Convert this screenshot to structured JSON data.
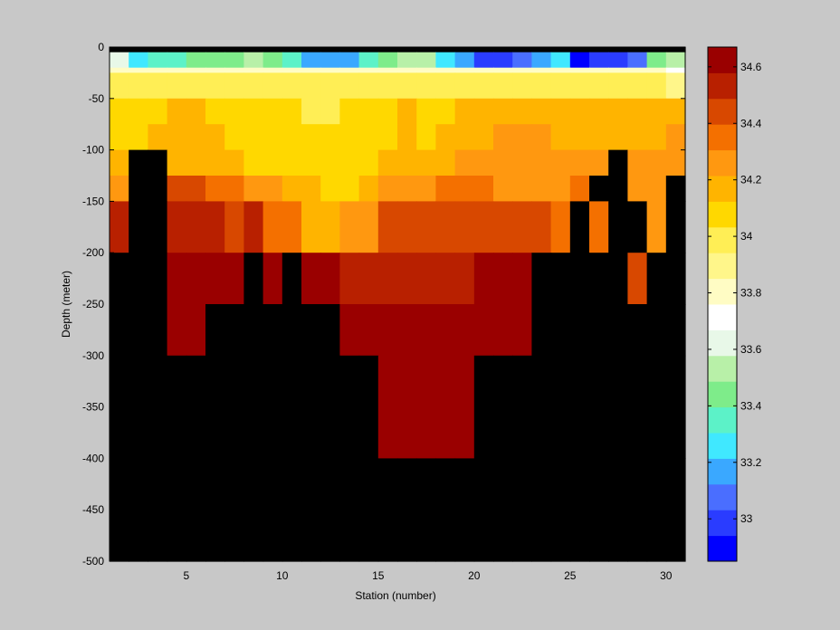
{
  "chart_data": {
    "type": "heatmap",
    "xlabel": "Station (number)",
    "ylabel": "Depth (meter)",
    "xlim": [
      1,
      31
    ],
    "ylim": [
      -500,
      0
    ],
    "x_ticks": [
      5,
      10,
      15,
      20,
      25,
      30
    ],
    "y_ticks": [
      0,
      -50,
      -100,
      -150,
      -200,
      -250,
      -300,
      -350,
      -400,
      -450,
      -500
    ],
    "x_tick_labels": [
      "5",
      "10",
      "15",
      "20",
      "25",
      "30"
    ],
    "y_tick_labels": [
      "0",
      "-50",
      "-100",
      "-150",
      "-200",
      "-250",
      "-300",
      "-350",
      "-400",
      "-450",
      "-500"
    ],
    "depth_bins": [
      [
        0,
        -5
      ],
      [
        -5,
        -20
      ],
      [
        -20,
        -25
      ],
      [
        -25,
        -50
      ],
      [
        -50,
        -75
      ],
      [
        -75,
        -100
      ],
      [
        -100,
        -125
      ],
      [
        -125,
        -150
      ],
      [
        -150,
        -200
      ],
      [
        -200,
        -250
      ],
      [
        -250,
        -300
      ],
      [
        -300,
        -400
      ],
      [
        -400,
        -500
      ]
    ],
    "stations": [
      1,
      2,
      3,
      4,
      5,
      6,
      7,
      8,
      9,
      10,
      11,
      12,
      13,
      14,
      15,
      16,
      17,
      18,
      19,
      20,
      21,
      22,
      23,
      24,
      25,
      26,
      27,
      28,
      29,
      30
    ],
    "grid_rows": [
      [
        null,
        null,
        null,
        null,
        null,
        null,
        null,
        null,
        null,
        null,
        null,
        null,
        null,
        null,
        null,
        null,
        null,
        null,
        null,
        null,
        null,
        null,
        null,
        null,
        null,
        null,
        null,
        null,
        null,
        null
      ],
      [
        33.58,
        33.3,
        33.35,
        33.38,
        33.42,
        33.45,
        33.47,
        33.5,
        33.45,
        33.35,
        33.15,
        33.15,
        33.2,
        33.35,
        33.45,
        33.55,
        33.55,
        33.3,
        33.2,
        33.0,
        32.95,
        33.1,
        33.2,
        33.25,
        32.9,
        32.95,
        32.95,
        33.1,
        33.45,
        33.55
      ],
      [
        33.82,
        33.82,
        33.82,
        33.82,
        33.82,
        33.82,
        33.82,
        33.82,
        33.82,
        33.82,
        33.82,
        33.82,
        33.82,
        33.82,
        33.82,
        33.82,
        33.82,
        33.82,
        33.82,
        33.82,
        33.82,
        33.82,
        33.82,
        33.82,
        33.82,
        33.82,
        33.82,
        33.82,
        33.82,
        33.7
      ],
      [
        34.0,
        33.98,
        33.98,
        33.98,
        33.97,
        33.97,
        33.97,
        33.95,
        33.95,
        33.95,
        33.95,
        33.95,
        33.95,
        33.97,
        33.97,
        33.98,
        33.98,
        33.98,
        34.0,
        34.0,
        34.0,
        34.0,
        34.02,
        34.02,
        34.03,
        34.03,
        33.98,
        33.97,
        33.97,
        33.9
      ],
      [
        34.12,
        34.1,
        34.12,
        34.15,
        34.15,
        34.12,
        34.08,
        34.05,
        34.05,
        34.05,
        34.03,
        34.03,
        34.05,
        34.08,
        34.12,
        34.14,
        34.12,
        34.12,
        34.15,
        34.18,
        34.2,
        34.2,
        34.2,
        34.18,
        34.18,
        34.18,
        34.18,
        34.16,
        34.16,
        34.2
      ],
      [
        34.12,
        34.1,
        34.13,
        34.15,
        34.15,
        34.13,
        34.1,
        34.08,
        34.05,
        34.05,
        34.05,
        34.05,
        34.06,
        34.1,
        34.12,
        34.13,
        34.12,
        34.15,
        34.18,
        34.2,
        34.22,
        34.22,
        34.22,
        34.2,
        34.2,
        34.2,
        34.2,
        34.18,
        34.18,
        34.22
      ],
      [
        34.18,
        null,
        null,
        34.18,
        34.18,
        34.16,
        34.15,
        34.12,
        34.1,
        34.08,
        34.06,
        34.06,
        34.08,
        34.12,
        34.15,
        34.16,
        34.18,
        34.2,
        34.22,
        34.25,
        34.25,
        34.28,
        34.28,
        34.26,
        34.28,
        34.28,
        null,
        34.22,
        34.22,
        34.3
      ],
      [
        34.3,
        null,
        null,
        34.4,
        34.4,
        34.35,
        34.32,
        34.3,
        34.25,
        34.2,
        34.15,
        34.12,
        34.12,
        34.18,
        34.25,
        34.3,
        34.3,
        34.32,
        34.33,
        34.32,
        34.3,
        34.28,
        34.3,
        34.3,
        34.32,
        null,
        null,
        34.28,
        34.28,
        null
      ],
      [
        34.5,
        null,
        null,
        34.52,
        34.52,
        34.52,
        34.45,
        34.5,
        34.38,
        34.35,
        34.2,
        34.2,
        34.22,
        34.25,
        34.4,
        34.4,
        34.4,
        34.42,
        34.42,
        34.42,
        34.42,
        34.42,
        34.4,
        34.38,
        null,
        34.36,
        null,
        null,
        34.3,
        null
      ],
      [
        null,
        null,
        null,
        34.64,
        34.64,
        34.64,
        34.64,
        null,
        34.64,
        null,
        34.58,
        34.58,
        34.5,
        34.5,
        34.55,
        34.55,
        34.55,
        34.55,
        34.55,
        34.58,
        34.58,
        34.58,
        null,
        null,
        null,
        null,
        null,
        34.43,
        null,
        null
      ],
      [
        null,
        null,
        null,
        34.64,
        34.64,
        null,
        null,
        null,
        null,
        null,
        null,
        null,
        34.6,
        34.6,
        34.6,
        34.64,
        34.64,
        34.64,
        34.64,
        34.64,
        34.64,
        34.64,
        null,
        null,
        null,
        null,
        null,
        null,
        null,
        null
      ],
      [
        null,
        null,
        null,
        null,
        null,
        null,
        null,
        null,
        null,
        null,
        null,
        null,
        null,
        null,
        34.64,
        34.64,
        34.64,
        34.64,
        34.64,
        null,
        null,
        null,
        null,
        null,
        null,
        null,
        null,
        null,
        null,
        null
      ],
      [
        null,
        null,
        null,
        null,
        null,
        null,
        null,
        null,
        null,
        null,
        null,
        null,
        null,
        null,
        null,
        null,
        null,
        null,
        null,
        null,
        null,
        null,
        null,
        null,
        null,
        null,
        null,
        null,
        null,
        null
      ]
    ],
    "colorbar": {
      "range": [
        32.85,
        34.67
      ],
      "ticks": [
        33,
        33.2,
        33.4,
        33.6,
        33.8,
        34,
        34.2,
        34.4,
        34.6
      ],
      "tick_labels": [
        "33",
        "33.2",
        "33.4",
        "33.6",
        "33.8",
        "34",
        "34.2",
        "34.4",
        "34.6"
      ],
      "palette": [
        "#0000ff",
        "#2a3cff",
        "#4a6eff",
        "#3aa8ff",
        "#40e8ff",
        "#5cf2c8",
        "#7eec8a",
        "#b8f0a8",
        "#e8f8e8",
        "#ffffff",
        "#fffcc4",
        "#fff68a",
        "#ffee55",
        "#ffd800",
        "#ffb400",
        "#ff9810",
        "#f47000",
        "#d84800",
        "#b82000",
        "#9a0000"
      ]
    },
    "missing_color": "#000000"
  }
}
